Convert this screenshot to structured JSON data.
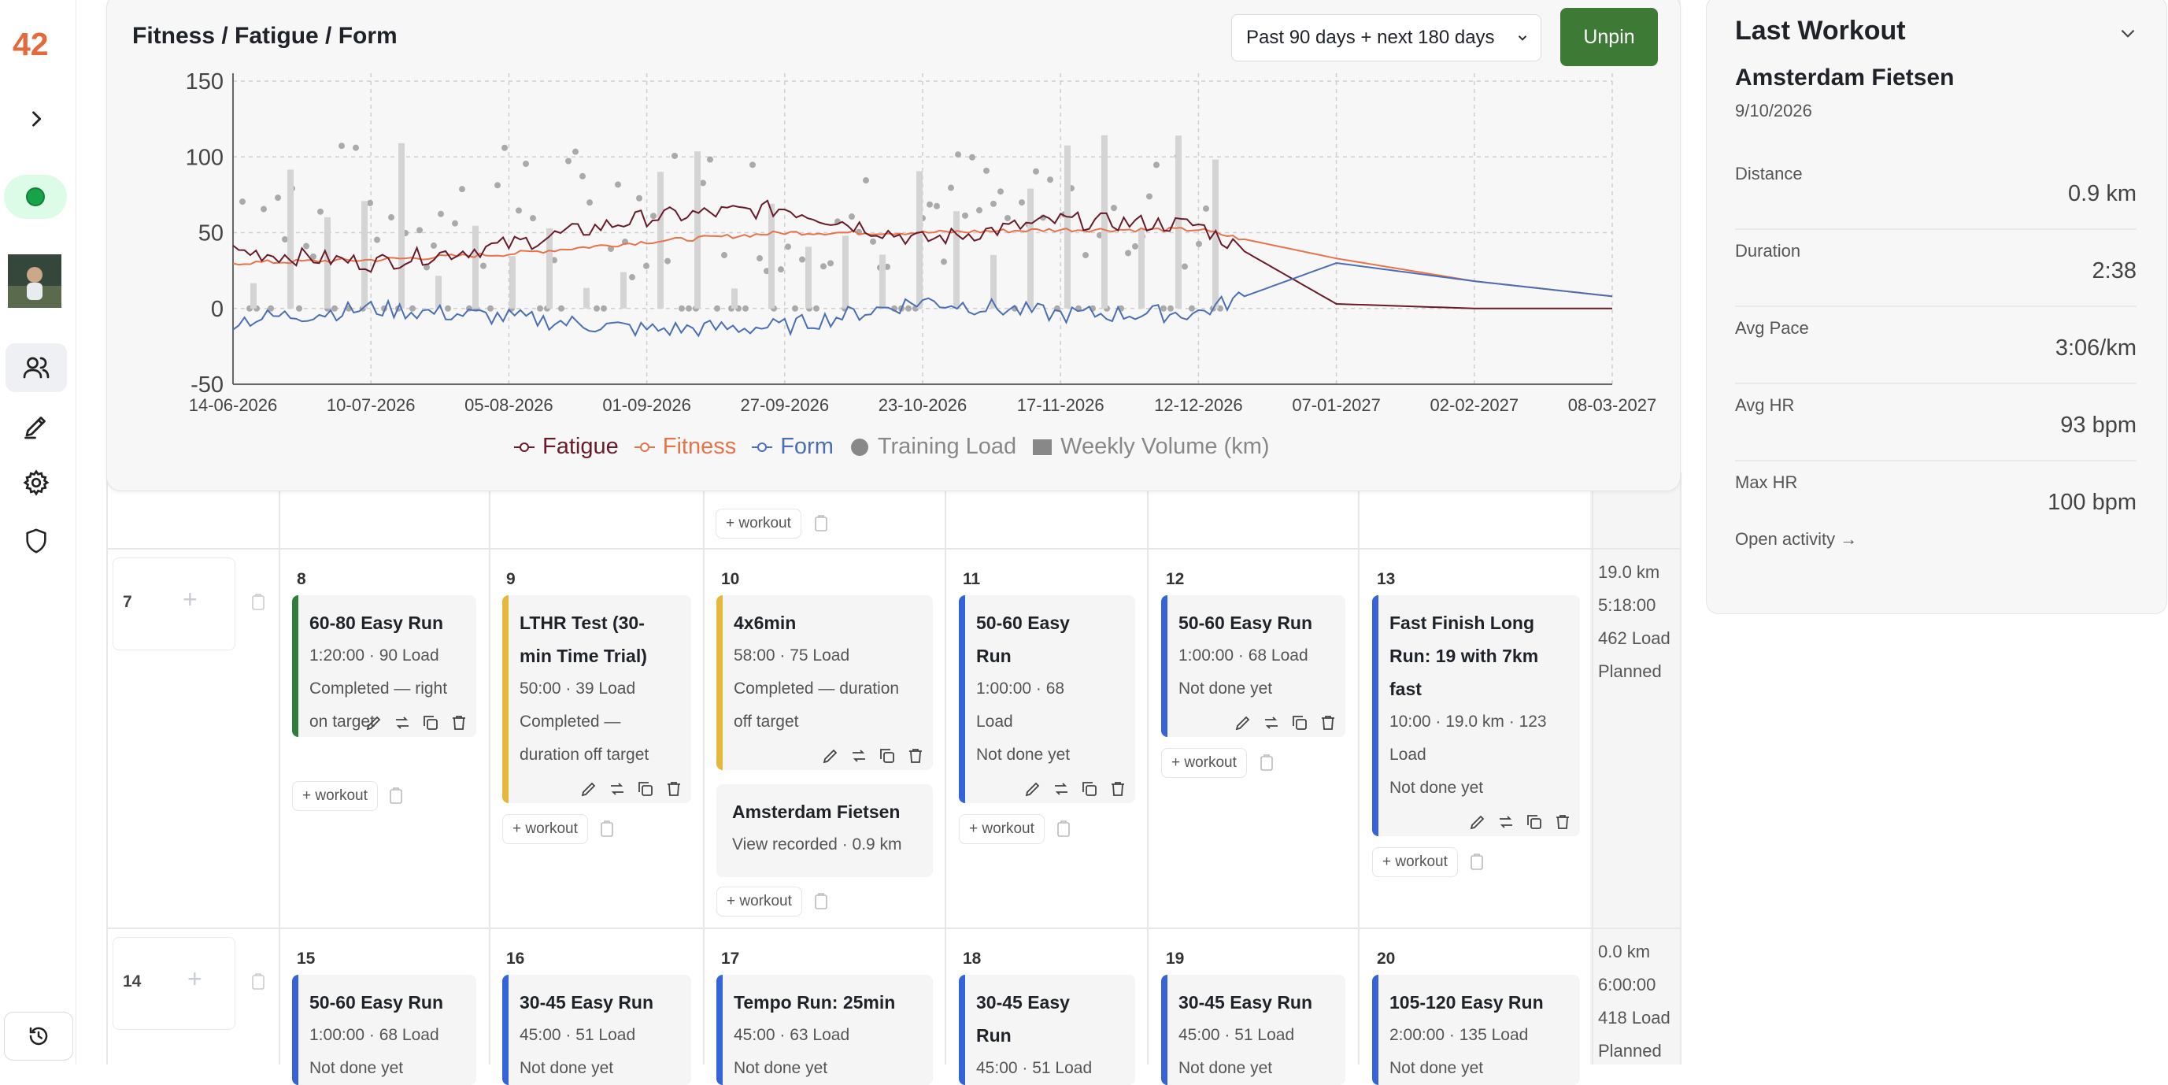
{
  "app": {
    "logo": "42"
  },
  "rail": {
    "items": [
      {
        "icon": "chevron-right-icon"
      },
      {
        "icon": "status-dot"
      },
      {
        "icon": "avatar"
      },
      {
        "icon": "users-icon"
      },
      {
        "icon": "edit-icon"
      },
      {
        "icon": "gear-icon"
      },
      {
        "icon": "shield-icon"
      },
      {
        "icon": "history-icon"
      }
    ]
  },
  "chart_panel": {
    "title": "Fitness / Fatigue / Form",
    "range_select": "Past 90 days + next 180 days",
    "unpin_label": "Unpin"
  },
  "chart_data": {
    "type": "line",
    "x_ticks": [
      "14-06-2026",
      "10-07-2026",
      "05-08-2026",
      "01-09-2026",
      "27-09-2026",
      "23-10-2026",
      "17-11-2026",
      "12-12-2026",
      "07-01-2027",
      "02-02-2027",
      "08-03-2027"
    ],
    "y_ticks": [
      "150",
      "100",
      "50",
      "0",
      "-50"
    ],
    "ylim": [
      -50,
      150
    ],
    "grid": true,
    "legend": [
      {
        "name": "Fatigue",
        "color": "#6b1a2a"
      },
      {
        "name": "Fitness",
        "color": "#e8734a"
      },
      {
        "name": "Form",
        "color": "#4a6fb5"
      },
      {
        "name": "Training Load",
        "color": "#888888"
      },
      {
        "name": "Weekly Volume (km)",
        "color": "#888888"
      }
    ],
    "legend_position": "bottom",
    "series": [
      {
        "name": "Fitness",
        "x": [
          "14-06-2026",
          "10-07-2026",
          "05-08-2026",
          "01-09-2026",
          "27-09-2026",
          "23-10-2026",
          "17-11-2026",
          "12-12-2026",
          "07-01-2027",
          "02-02-2027",
          "08-03-2027"
        ],
        "values": [
          30,
          32,
          36,
          44,
          50,
          50,
          52,
          52,
          33,
          18,
          8
        ]
      },
      {
        "name": "Fatigue",
        "x": [
          "14-06-2026",
          "10-07-2026",
          "05-08-2026",
          "01-09-2026",
          "27-09-2026",
          "23-10-2026",
          "17-11-2026",
          "12-12-2026",
          "07-01-2027",
          "02-02-2027",
          "08-03-2027"
        ],
        "values": [
          38,
          30,
          42,
          60,
          66,
          45,
          58,
          55,
          3,
          0,
          0
        ]
      },
      {
        "name": "Form",
        "x": [
          "14-06-2026",
          "10-07-2026",
          "05-08-2026",
          "01-09-2026",
          "27-09-2026",
          "23-10-2026",
          "17-11-2026",
          "12-12-2026",
          "07-01-2027",
          "02-02-2027",
          "08-03-2027"
        ],
        "values": [
          -8,
          0,
          -6,
          -14,
          -12,
          5,
          -4,
          -3,
          30,
          18,
          8
        ]
      }
    ]
  },
  "calendar": {
    "weeks": [
      {
        "week_label": "7",
        "totals": [
          "19.0 km",
          "5:18:00",
          "462 Load",
          "Planned"
        ],
        "days": [
          {
            "day": "8",
            "cards": [
              {
                "color": "green",
                "title": "60-80 Easy Run",
                "lines": [
                  "1:20:00 · 90 Load",
                  "Completed — right",
                  "on target"
                ]
              }
            ]
          },
          {
            "day": "9",
            "cards": [
              {
                "color": "yellow",
                "title": "LTHR Test (30-",
                "title2": "min Time Trial)",
                "lines": [
                  "50:00 · 39 Load",
                  "Completed —",
                  "duration off target"
                ]
              }
            ]
          },
          {
            "day": "10",
            "cards": [
              {
                "color": "yellow",
                "title": "4x6min",
                "lines": [
                  "58:00 · 75 Load",
                  "Completed — duration",
                  "off target"
                ]
              },
              {
                "color": "plain",
                "title": "Amsterdam Fietsen",
                "lines": [
                  "View recorded · 0.9 km"
                ]
              }
            ]
          },
          {
            "day": "11",
            "cards": [
              {
                "color": "blue",
                "title": "50-60 Easy",
                "title2": "Run",
                "lines": [
                  "1:00:00 · 68",
                  "Load",
                  "Not done yet"
                ]
              }
            ]
          },
          {
            "day": "12",
            "cards": [
              {
                "color": "blue",
                "title": "50-60 Easy Run",
                "lines": [
                  "1:00:00 · 68 Load",
                  "Not done yet"
                ]
              }
            ]
          },
          {
            "day": "13",
            "cards": [
              {
                "color": "blue",
                "title": "Fast Finish Long",
                "title2": "Run: 19 with 7km",
                "title3": "fast",
                "lines": [
                  "10:00 · 19.0 km · 123",
                  "Load",
                  "Not done yet"
                ]
              }
            ]
          }
        ]
      },
      {
        "week_label": "14",
        "totals": [
          "0.0 km",
          "6:00:00",
          "418 Load",
          "Planned"
        ],
        "days": [
          {
            "day": "15",
            "cards": [
              {
                "color": "blue",
                "title": "50-60 Easy Run",
                "lines": [
                  "1:00:00 · 68 Load",
                  "Not done yet"
                ]
              }
            ]
          },
          {
            "day": "16",
            "cards": [
              {
                "color": "blue",
                "title": "30-45 Easy Run",
                "lines": [
                  "45:00 · 51 Load",
                  "Not done yet"
                ]
              }
            ]
          },
          {
            "day": "17",
            "cards": [
              {
                "color": "blue",
                "title": "Tempo Run: 25min",
                "lines": [
                  "45:00 · 63 Load",
                  "Not done yet"
                ]
              }
            ]
          },
          {
            "day": "18",
            "cards": [
              {
                "color": "blue",
                "title": "30-45 Easy",
                "title2": "Run",
                "lines": [
                  "45:00 · 51 Load"
                ]
              }
            ]
          },
          {
            "day": "19",
            "cards": [
              {
                "color": "blue",
                "title": "30-45 Easy Run",
                "lines": [
                  "45:00 · 51 Load",
                  "Not done yet"
                ]
              }
            ]
          },
          {
            "day": "20",
            "cards": [
              {
                "color": "blue",
                "title": "105-120 Easy Run",
                "lines": [
                  "2:00:00 · 135 Load",
                  "Not done yet"
                ]
              }
            ]
          }
        ]
      }
    ],
    "add_workout_label": "+ workout"
  },
  "last_workout": {
    "title": "Last Workout",
    "workout_name": "Amsterdam Fietsen",
    "date": "9/10/2026",
    "stats": [
      {
        "label": "Distance",
        "value": "0.9 km"
      },
      {
        "label": "Duration",
        "value": "2:38"
      },
      {
        "label": "Avg Pace",
        "value": "3:06/km"
      },
      {
        "label": "Avg HR",
        "value": "93 bpm"
      },
      {
        "label": "Max HR",
        "value": "100 bpm"
      }
    ],
    "open_activity": "Open activity →"
  }
}
